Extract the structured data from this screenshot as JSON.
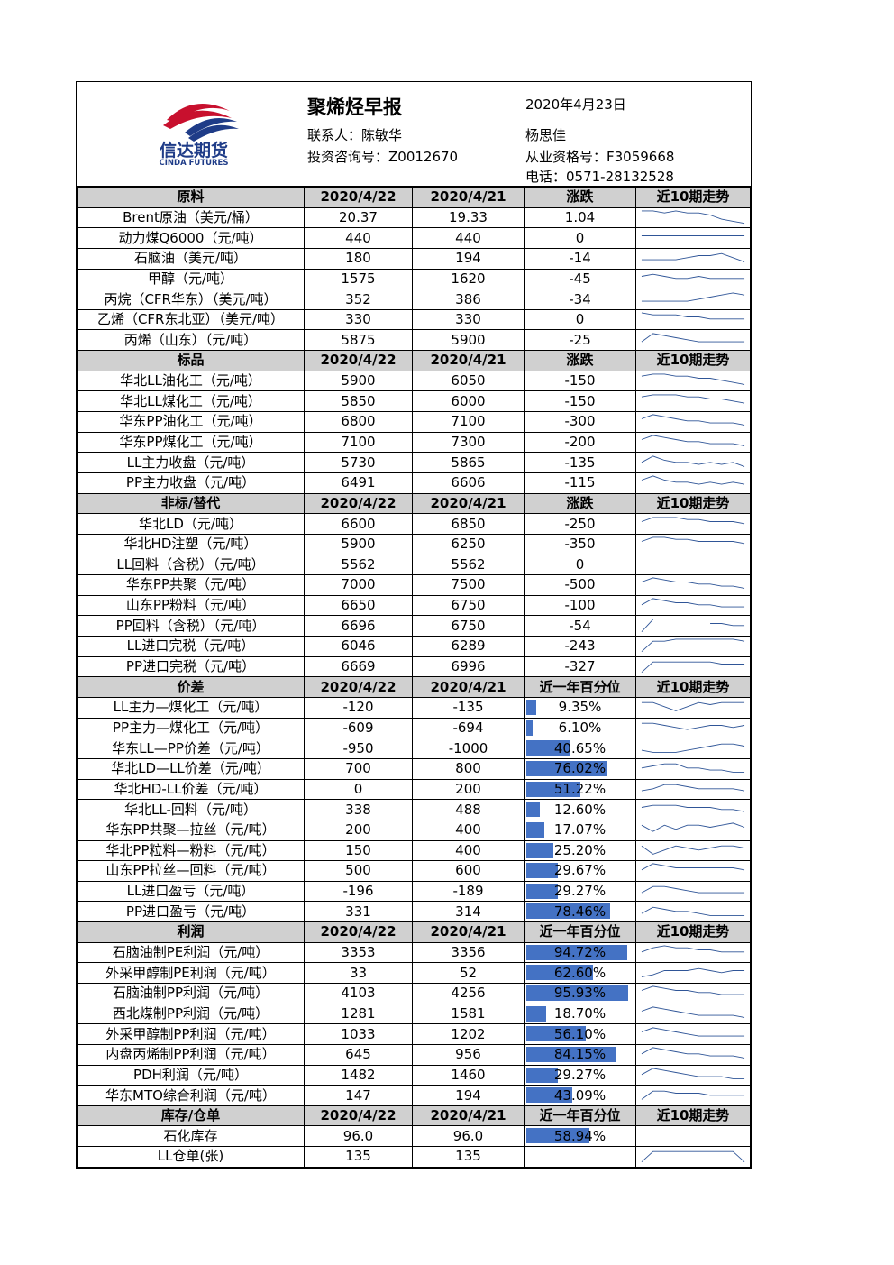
{
  "header": {
    "logo_cn": "信达期货",
    "logo_en": "CINDA FUTURES",
    "title": "聚烯烃早报",
    "date": "2020年4月23日",
    "contact1": "联系人：陈敏华",
    "contact1_id": "投资咨询号：Z0012670",
    "contact2": "杨思佳",
    "contact2_id": "从业资格号：F3059668",
    "phone": "电话：0571-28132528"
  },
  "sections": [
    {
      "title": "原料",
      "c1": "2020/4/22",
      "c2": "2020/4/21",
      "c3": "涨跌",
      "c4": "近10期走势",
      "mode": "change",
      "rows": [
        {
          "name": "Brent原油（美元/桶）",
          "v1": "20.37",
          "v2": "19.33",
          "v3": "1.04",
          "trend": [
            7,
            7,
            6,
            7,
            6,
            6,
            5,
            3,
            2,
            1
          ]
        },
        {
          "name": "动力煤Q6000（元/吨）",
          "v1": "440",
          "v2": "440",
          "v3": "0",
          "trend": [
            5,
            5,
            5,
            5,
            5,
            5,
            5,
            5,
            5,
            5
          ]
        },
        {
          "name": "石脑油（美元/吨）",
          "v1": "180",
          "v2": "194",
          "v3": "-14",
          "trend": [
            3,
            3,
            3,
            3,
            4,
            5,
            5,
            6,
            4,
            2
          ]
        },
        {
          "name": "甲醇（元/吨）",
          "v1": "1575",
          "v2": "1620",
          "v3": "-45",
          "trend": [
            5,
            6,
            5,
            4,
            4,
            5,
            4,
            4,
            4,
            4
          ]
        },
        {
          "name": "丙烷（CFR华东）（美元/吨）",
          "v1": "352",
          "v2": "386",
          "v3": "-34",
          "trend": [
            3,
            3,
            3,
            3,
            3,
            4,
            5,
            6,
            7,
            6
          ]
        },
        {
          "name": "乙烯（CFR东北亚）（美元/吨）",
          "v1": "330",
          "v2": "330",
          "v3": "0",
          "trend": [
            7,
            6,
            6,
            6,
            5,
            5,
            4,
            4,
            4,
            4
          ]
        },
        {
          "name": "丙烯（山东）（元/吨）",
          "v1": "5875",
          "v2": "5900",
          "v3": "-25",
          "trend": [
            3,
            7,
            6,
            5,
            4,
            3,
            3,
            3,
            3,
            3
          ]
        }
      ]
    },
    {
      "title": "标品",
      "c1": "2020/4/22",
      "c2": "2020/4/21",
      "c3": "涨跌",
      "c4": "近10期走势",
      "mode": "change",
      "rows": [
        {
          "name": "华北LL油化工（元/吨）",
          "v1": "5900",
          "v2": "6050",
          "v3": "-150",
          "trend": [
            6,
            7,
            7,
            6,
            6,
            5,
            5,
            4,
            3,
            2
          ]
        },
        {
          "name": "华北LL煤化工（元/吨）",
          "v1": "5850",
          "v2": "6000",
          "v3": "-150",
          "trend": [
            6,
            7,
            7,
            7,
            6,
            6,
            5,
            5,
            4,
            3
          ]
        },
        {
          "name": "华东PP油化工（元/吨）",
          "v1": "6800",
          "v2": "7100",
          "v3": "-300",
          "trend": [
            5,
            7,
            6,
            5,
            4,
            4,
            3,
            3,
            3,
            2
          ]
        },
        {
          "name": "华东PP煤化工（元/吨）",
          "v1": "7100",
          "v2": "7300",
          "v3": "-200",
          "trend": [
            5,
            7,
            6,
            5,
            4,
            4,
            3,
            3,
            3,
            2
          ]
        },
        {
          "name": "LL主力收盘（元/吨）",
          "v1": "5730",
          "v2": "5865",
          "v3": "-135",
          "trend": [
            4,
            7,
            5,
            4,
            4,
            3,
            4,
            3,
            4,
            2
          ]
        },
        {
          "name": "PP主力收盘（元/吨）",
          "v1": "6491",
          "v2": "6606",
          "v3": "-115",
          "trend": [
            5,
            7,
            5,
            4,
            4,
            3,
            4,
            3,
            4,
            3
          ]
        }
      ]
    },
    {
      "title": "非标/替代",
      "c1": "2020/4/22",
      "c2": "2020/4/21",
      "c3": "涨跌",
      "c4": "近10期走势",
      "mode": "change",
      "rows": [
        {
          "name": "华北LD（元/吨）",
          "v1": "6600",
          "v2": "6850",
          "v3": "-250",
          "trend": [
            5,
            7,
            7,
            7,
            6,
            6,
            5,
            5,
            5,
            4
          ]
        },
        {
          "name": "华北HD注塑（元/吨）",
          "v1": "5900",
          "v2": "6250",
          "v3": "-350",
          "trend": [
            5,
            7,
            7,
            6,
            6,
            5,
            5,
            5,
            5,
            4
          ]
        },
        {
          "name": "LL回料（含税）（元/吨）",
          "v1": "5562",
          "v2": "5562",
          "v3": "0",
          "trend": []
        },
        {
          "name": "华东PP共聚（元/吨）",
          "v1": "7000",
          "v2": "7500",
          "v3": "-500",
          "trend": [
            5,
            7,
            6,
            5,
            5,
            4,
            4,
            3,
            3,
            2
          ]
        },
        {
          "name": "山东PP粉料（元/吨）",
          "v1": "6650",
          "v2": "6750",
          "v3": "-100",
          "trend": [
            4,
            7,
            6,
            5,
            5,
            4,
            4,
            3,
            3,
            3
          ]
        },
        {
          "name": "PP回料（含税）（元/吨）",
          "v1": "6696",
          "v2": "6750",
          "v3": "-54",
          "trend": [
            1,
            7,
            null,
            null,
            null,
            null,
            5,
            5,
            4,
            4
          ]
        },
        {
          "name": "LL进口完税（元/吨）",
          "v1": "6046",
          "v2": "6289",
          "v3": "-243",
          "trend": [
            1,
            6,
            6,
            7,
            7,
            7,
            7,
            7,
            7,
            6
          ]
        },
        {
          "name": "PP进口完税（元/吨）",
          "v1": "6669",
          "v2": "6996",
          "v3": "-327",
          "trend": [
            1,
            6,
            6,
            6,
            6,
            6,
            6,
            5,
            5,
            5
          ]
        }
      ]
    },
    {
      "title": "价差",
      "c1": "2020/4/22",
      "c2": "2020/4/21",
      "c3": "近一年百分位",
      "c4": "近10期走势",
      "mode": "pct",
      "rows": [
        {
          "name": "LL主力—煤化工（元/吨）",
          "v1": "-120",
          "v2": "-135",
          "v3": "9.35%",
          "p": 0.0935,
          "trend": [
            6,
            6,
            4,
            2,
            4,
            6,
            5,
            6,
            6,
            6
          ]
        },
        {
          "name": "PP主力—煤化工（元/吨）",
          "v1": "-609",
          "v2": "-694",
          "v3": "6.10%",
          "p": 0.061,
          "trend": [
            6,
            6,
            5,
            4,
            3,
            4,
            5,
            5,
            4,
            5
          ]
        },
        {
          "name": "华东LL—PP价差（元/吨）",
          "v1": "-950",
          "v2": "-1000",
          "v3": "40.65%",
          "p": 0.4065,
          "trend": [
            3,
            2,
            2,
            2,
            3,
            4,
            5,
            6,
            6,
            5
          ]
        },
        {
          "name": "华北LD—LL价差（元/吨）",
          "v1": "700",
          "v2": "800",
          "v3": "76.02%",
          "p": 0.7602,
          "trend": [
            4,
            5,
            6,
            6,
            4,
            4,
            3,
            3,
            2,
            2
          ]
        },
        {
          "name": "华北HD-LL价差（元/吨）",
          "v1": "0",
          "v2": "200",
          "v3": "51.22%",
          "p": 0.5122,
          "trend": [
            3,
            4,
            6,
            6,
            5,
            4,
            4,
            4,
            4,
            3
          ]
        },
        {
          "name": "华北LL-回料（元/吨）",
          "v1": "338",
          "v2": "488",
          "v3": "12.60%",
          "p": 0.126,
          "trend": [
            5,
            6,
            6,
            6,
            5,
            5,
            5,
            4,
            4,
            3
          ]
        },
        {
          "name": "华东PP共聚—拉丝（元/吨）",
          "v1": "200",
          "v2": "400",
          "v3": "17.07%",
          "p": 0.1707,
          "trend": [
            6,
            3,
            6,
            4,
            6,
            6,
            5,
            6,
            7,
            5
          ]
        },
        {
          "name": "华北PP粒料—粉料（元/吨）",
          "v1": "150",
          "v2": "400",
          "v3": "25.20%",
          "p": 0.252,
          "trend": [
            6,
            2,
            4,
            6,
            5,
            4,
            5,
            6,
            6,
            5
          ]
        },
        {
          "name": "山东PP拉丝—回料（元/吨）",
          "v1": "500",
          "v2": "600",
          "v3": "29.67%",
          "p": 0.2967,
          "trend": [
            4,
            7,
            6,
            5,
            5,
            5,
            5,
            5,
            5,
            4
          ]
        },
        {
          "name": "LL进口盈亏（元/吨）",
          "v1": "-196",
          "v2": "-189",
          "v3": "29.27%",
          "p": 0.2927,
          "trend": [
            3,
            6,
            6,
            5,
            4,
            3,
            3,
            3,
            3,
            3
          ]
        },
        {
          "name": "PP进口盈亏（元/吨）",
          "v1": "331",
          "v2": "314",
          "v3": "78.46%",
          "p": 0.7846,
          "trend": [
            3,
            6,
            5,
            4,
            4,
            3,
            2,
            2,
            2,
            2
          ]
        }
      ]
    },
    {
      "title": "利润",
      "c1": "2020/4/22",
      "c2": "2020/4/21",
      "c3": "近一年百分位",
      "c4": "近10期走势",
      "mode": "pct",
      "rows": [
        {
          "name": "石脑油制PE利润（元/吨）",
          "v1": "3353",
          "v2": "3356",
          "v3": "94.72%",
          "p": 0.9472,
          "trend": [
            4,
            6,
            7,
            6,
            6,
            5,
            5,
            4,
            4,
            4
          ]
        },
        {
          "name": "外采甲醇制PE利润（元/吨）",
          "v1": "33",
          "v2": "52",
          "v3": "62.60%",
          "p": 0.626,
          "trend": [
            2,
            3,
            5,
            5,
            5,
            6,
            5,
            4,
            5,
            5
          ]
        },
        {
          "name": "石脑油制PP利润（元/吨）",
          "v1": "4103",
          "v2": "4256",
          "v3": "95.93%",
          "p": 0.9593,
          "trend": [
            5,
            7,
            6,
            5,
            5,
            4,
            4,
            3,
            3,
            3
          ]
        },
        {
          "name": "西北煤制PP利润（元/吨）",
          "v1": "1281",
          "v2": "1581",
          "v3": "18.70%",
          "p": 0.187,
          "trend": [
            5,
            7,
            6,
            5,
            4,
            3,
            3,
            3,
            3,
            2
          ]
        },
        {
          "name": "外采甲醇制PP利润（元/吨）",
          "v1": "1033",
          "v2": "1202",
          "v3": "56.10%",
          "p": 0.561,
          "trend": [
            5,
            7,
            6,
            5,
            4,
            3,
            3,
            3,
            3,
            3
          ]
        },
        {
          "name": "内盘丙烯制PP利润（元/吨）",
          "v1": "645",
          "v2": "956",
          "v3": "84.15%",
          "p": 0.8415,
          "trend": [
            4,
            7,
            6,
            5,
            4,
            4,
            3,
            3,
            3,
            2
          ]
        },
        {
          "name": "PDH利润（元/吨）",
          "v1": "1482",
          "v2": "1460",
          "v3": "29.27%",
          "p": 0.2927,
          "trend": [
            4,
            7,
            6,
            5,
            4,
            3,
            3,
            3,
            2,
            2
          ]
        },
        {
          "name": "华东MTO综合利润（元/吨）",
          "v1": "147",
          "v2": "194",
          "v3": "43.09%",
          "p": 0.4309,
          "trend": [
            2,
            6,
            6,
            5,
            5,
            5,
            4,
            4,
            4,
            4
          ]
        }
      ]
    },
    {
      "title": "库存/仓单",
      "c1": "2020/4/22",
      "c2": "2020/4/21",
      "c3": "近一年百分位",
      "c4": "近10期走势",
      "mode": "pct",
      "rows": [
        {
          "name": "石化库存",
          "v1": "96.0",
          "v2": "96.0",
          "v3": "58.94%",
          "p": 0.5894,
          "trend": []
        },
        {
          "name": "LL仓单(张)",
          "v1": "135",
          "v2": "135",
          "v3": "",
          "p": 0,
          "trend": [
            1,
            6,
            6,
            6,
            6,
            6,
            6,
            6,
            6,
            1
          ]
        }
      ]
    }
  ]
}
